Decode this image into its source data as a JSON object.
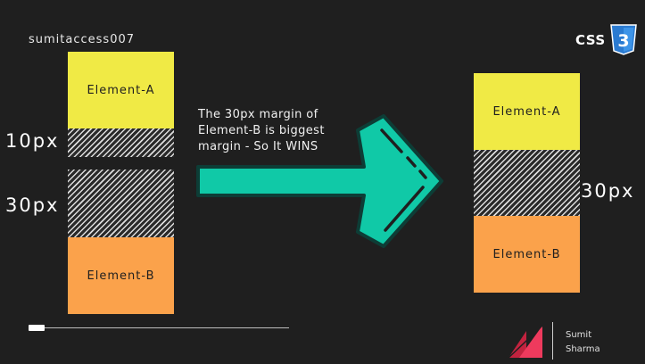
{
  "author": "sumitaccess007",
  "left_diagram": {
    "element_a": "Element-A",
    "element_b": "Element-B",
    "margin_a_label": "10px",
    "margin_b_label": "30px"
  },
  "caption": "The 30px margin of Element-B is biggest margin - So It WINS",
  "right_diagram": {
    "element_a": "Element-A",
    "element_b": "Element-B",
    "collapsed_label": "30px"
  },
  "badge": {
    "text": "CSS",
    "number": "3"
  },
  "signature": {
    "first": "Sumit",
    "last": "Sharma"
  },
  "colors": {
    "element_a": "#f0ea45",
    "element_b": "#fba24b",
    "arrow": "#10c9a7",
    "background": "#1f1f1f"
  }
}
